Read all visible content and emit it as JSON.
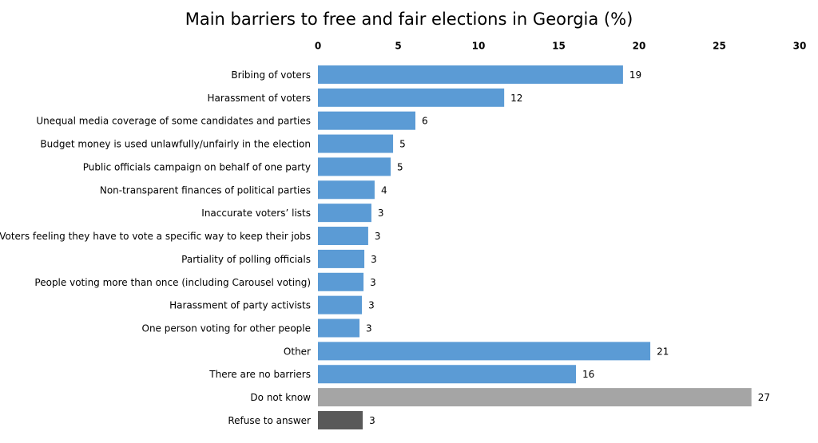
{
  "chart_data": {
    "type": "hbar",
    "title": "Main barriers to free and fair elections in Georgia (%)",
    "categories": [
      "Bribing of voters",
      "Harassment of voters",
      "Unequal media coverage of some candidates and parties",
      "Budget money is used unlawfully/unfairly in the election",
      "Public officials campaign on behalf of one party",
      "Non-transparent finances of political parties",
      "Inaccurate voters’ lists",
      "Voters feeling they have to vote a specific way to keep their jobs",
      "Partiality of polling officials",
      "People voting more than once (including Carousel voting)",
      "Harassment of party activists",
      "One person voting for other people",
      "Other",
      "There are no barriers",
      "Do not know",
      "Refuse to answer"
    ],
    "values": [
      19.0,
      11.6,
      6.07,
      4.68,
      4.53,
      3.53,
      3.33,
      3.13,
      2.89,
      2.84,
      2.74,
      2.59,
      20.7,
      16.07,
      27.0,
      2.79
    ],
    "value_labels": [
      "19",
      "12",
      "6",
      "5",
      "5",
      "4",
      "3",
      "3",
      "3",
      "3",
      "3",
      "3",
      "21",
      "16",
      "27",
      "3"
    ],
    "colors": [
      "#5b9bd5",
      "#5b9bd5",
      "#5b9bd5",
      "#5b9bd5",
      "#5b9bd5",
      "#5b9bd5",
      "#5b9bd5",
      "#5b9bd5",
      "#5b9bd5",
      "#5b9bd5",
      "#5b9bd5",
      "#5b9bd5",
      "#5b9bd5",
      "#5b9bd5",
      "#a5a5a5",
      "#595959"
    ],
    "xlim": [
      0,
      30
    ],
    "xticks": [
      0,
      5,
      10,
      15,
      20,
      25,
      30
    ],
    "grid": false
  }
}
